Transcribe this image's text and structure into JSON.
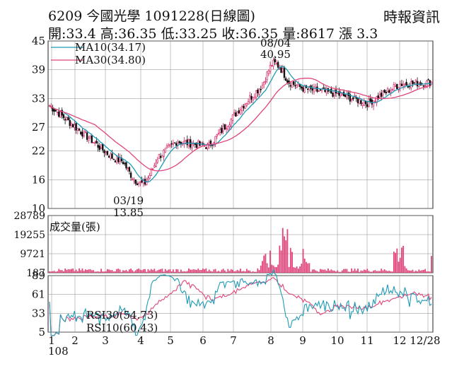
{
  "header": {
    "title": "6209  今國光學 1091228(日線圖)",
    "quote": "開:33.4 高:36.35 低:33.25 收:36.35 量:8617 漲 3.3",
    "source": "時報資訊"
  },
  "colors": {
    "up": "#d81b60",
    "down": "#111111",
    "ma10": "#1f9bb5",
    "ma30": "#e0457b",
    "volume": "#e0457b",
    "rsi30": "#e0457b",
    "rsi10": "#1f9bb5",
    "grid": "#888888"
  },
  "chart_data": [
    {
      "type": "candlestick",
      "panel": "price",
      "yticks": [
        45,
        39,
        33,
        27,
        22,
        16,
        10
      ],
      "ylim": [
        10,
        45
      ],
      "legend": [
        {
          "name": "MA10(34.17)",
          "color": "#1f9bb5"
        },
        {
          "name": "MA30(34.80)",
          "color": "#e0457b"
        }
      ],
      "annotations": [
        {
          "date_label": "08/04",
          "value_label": "40.95",
          "position": "above-peak"
        },
        {
          "date_label": "03/19",
          "value_label": "13.85",
          "position": "below-trough"
        }
      ],
      "series": [
        {
          "name": "close",
          "month_points": [
            {
              "month": "1",
              "value": 31.5
            },
            {
              "month": "2",
              "value": 26.0
            },
            {
              "month": "3",
              "value": 20.5
            },
            {
              "month": "4",
              "value": 18.5
            },
            {
              "month": "5",
              "value": 24.0
            },
            {
              "month": "6",
              "value": 23.0
            },
            {
              "month": "7",
              "value": 31.0
            },
            {
              "month": "8",
              "value": 38.0
            },
            {
              "month": "9",
              "value": 35.0
            },
            {
              "month": "10",
              "value": 34.0
            },
            {
              "month": "11",
              "value": 32.0
            },
            {
              "month": "12",
              "value": 36.0
            },
            {
              "month": "12/28",
              "value": 36.35
            }
          ]
        },
        {
          "name": "MA10",
          "last": 34.17
        },
        {
          "name": "MA30",
          "last": 34.8
        }
      ]
    },
    {
      "type": "bar",
      "panel": "volume",
      "label": "成交量(張)",
      "yticks": [
        28789,
        19255,
        9721,
        187
      ],
      "ylim": [
        187,
        28789
      ],
      "last": 8617
    },
    {
      "type": "line",
      "panel": "rsi",
      "yticks": [
        89,
        61,
        33,
        5
      ],
      "ylim": [
        5,
        89
      ],
      "series": [
        {
          "name": "RSI30(54.73)",
          "last": 54.73
        },
        {
          "name": "RSI10(60.43)",
          "last": 60.43
        }
      ]
    }
  ],
  "xaxis": {
    "month_labels": [
      "1",
      "2",
      "3",
      "4",
      "5",
      "6",
      "7",
      "8",
      "9",
      "10",
      "11",
      "12",
      "12/28"
    ],
    "year_label": "108"
  }
}
